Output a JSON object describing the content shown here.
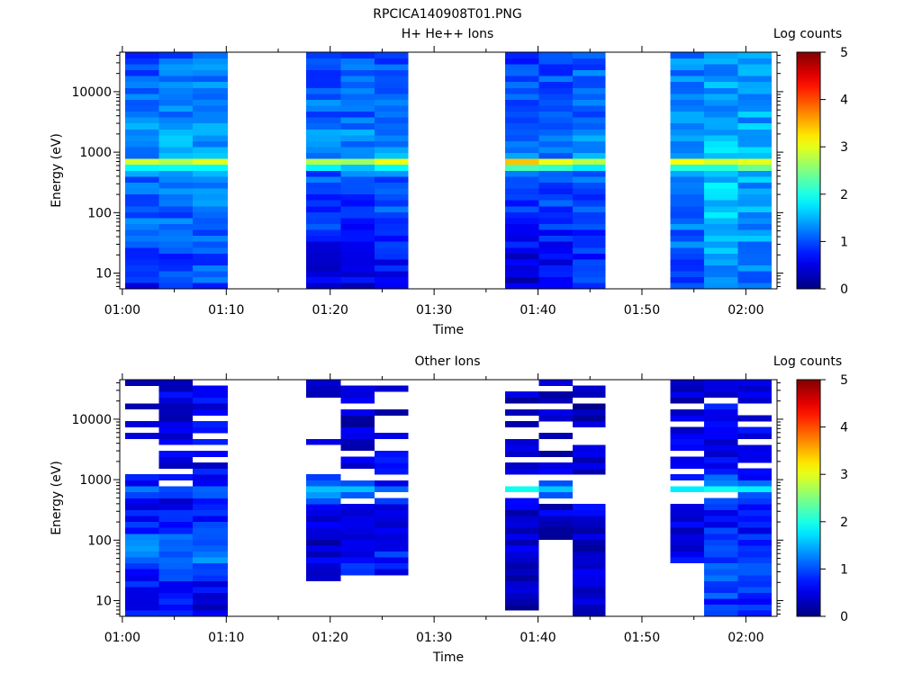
{
  "figure_title": "RPCICA140908T01.PNG",
  "chart_data": [
    {
      "type": "heatmap",
      "title": "H+ He++ Ions",
      "xlabel": "Time",
      "ylabel": "Energy (eV)",
      "colorbar_label": "Log counts",
      "colorbar_ticks": [
        "0",
        "1",
        "2",
        "3",
        "4",
        "5"
      ],
      "colorbar_range": [
        0,
        5
      ],
      "x_ticks": [
        "01:00",
        "01:10",
        "01:20",
        "01:30",
        "01:40",
        "01:50",
        "02:00"
      ],
      "x_range": [
        "00:59:45",
        "02:03:00"
      ],
      "y_scale": "log",
      "y_range": [
        5.5,
        45000
      ],
      "y_ticks": [
        "10",
        "100",
        "1000",
        "10000"
      ],
      "grid": false,
      "colormap": "jet",
      "missing_value_color": "#ffffff",
      "peak_energy_eV": 650,
      "columns": [
        {
          "start": "01:00:15",
          "end": "01:03:30",
          "base": [
            0.7,
            0.85,
            0.95,
            1.05,
            1.15,
            1.05,
            1.1,
            1.2,
            1.25,
            1.35,
            1.3,
            1.2,
            1.1,
            1.05,
            1.1,
            1.0
          ]
        },
        {
          "start": "01:03:30",
          "end": "01:06:45",
          "base": [
            0.95,
            0.9,
            0.95,
            1.0,
            1.1,
            1.15,
            1.1,
            1.2,
            1.3,
            1.4,
            1.35,
            1.25,
            1.15,
            1.1,
            1.15,
            1.05
          ]
        },
        {
          "start": "01:06:45",
          "end": "01:10:10",
          "base": [
            1.0,
            1.0,
            1.05,
            1.1,
            1.15,
            1.2,
            1.25,
            1.3,
            1.35,
            1.45,
            1.4,
            1.3,
            1.25,
            1.2,
            1.25,
            1.15
          ]
        },
        {
          "start": "01:17:40",
          "end": "01:21:00",
          "base": [
            0.45,
            0.5,
            0.6,
            0.7,
            0.85,
            0.9,
            1.0,
            1.05,
            1.15,
            1.25,
            1.2,
            1.15,
            1.1,
            1.0,
            1.05,
            0.95
          ]
        },
        {
          "start": "01:21:00",
          "end": "01:24:15",
          "base": [
            0.5,
            0.55,
            0.65,
            0.75,
            0.8,
            0.85,
            0.95,
            1.05,
            1.15,
            1.3,
            1.25,
            1.15,
            1.1,
            1.05,
            1.1,
            1.0
          ]
        },
        {
          "start": "01:24:15",
          "end": "01:27:30",
          "base": [
            0.7,
            0.65,
            0.6,
            0.75,
            0.9,
            1.0,
            1.0,
            1.1,
            1.5,
            1.35,
            1.25,
            1.2,
            1.1,
            1.0,
            1.05,
            1.0
          ]
        },
        {
          "start": "01:36:50",
          "end": "01:40:05",
          "base": [
            0.35,
            0.4,
            0.5,
            0.6,
            0.75,
            0.85,
            0.95,
            1.05,
            1.5,
            1.25,
            1.2,
            1.1,
            1.0,
            0.95,
            1.0,
            0.9
          ]
        },
        {
          "start": "01:40:05",
          "end": "01:43:20",
          "base": [
            0.7,
            0.75,
            0.6,
            0.65,
            0.8,
            0.9,
            1.0,
            1.1,
            1.25,
            1.3,
            1.2,
            1.1,
            1.05,
            1.0,
            1.05,
            0.95
          ]
        },
        {
          "start": "01:43:20",
          "end": "01:46:30",
          "base": [
            0.9,
            0.85,
            0.8,
            0.85,
            0.9,
            1.0,
            1.05,
            1.15,
            1.3,
            1.35,
            1.25,
            1.15,
            1.1,
            1.05,
            1.1,
            1.0
          ]
        },
        {
          "start": "01:52:45",
          "end": "01:56:00",
          "base": [
            1.0,
            1.05,
            1.05,
            1.1,
            1.2,
            1.25,
            1.3,
            1.35,
            1.45,
            1.4,
            1.35,
            1.3,
            1.25,
            1.2,
            1.25,
            1.15
          ]
        },
        {
          "start": "01:56:00",
          "end": "01:59:15",
          "base": [
            1.3,
            1.4,
            1.45,
            1.5,
            1.55,
            1.6,
            1.6,
            1.6,
            1.5,
            1.55,
            1.5,
            1.45,
            1.4,
            1.35,
            1.4,
            1.3
          ]
        },
        {
          "start": "01:59:15",
          "end": "02:02:30",
          "base": [
            1.1,
            1.2,
            1.3,
            1.35,
            1.4,
            1.45,
            1.4,
            1.45,
            1.5,
            1.55,
            1.45,
            1.4,
            1.35,
            1.3,
            1.35,
            1.25
          ]
        }
      ]
    },
    {
      "type": "heatmap",
      "title": "Other Ions",
      "xlabel": "Time",
      "ylabel": "Energy (eV)",
      "colorbar_label": "Log counts",
      "colorbar_ticks": [
        "0",
        "1",
        "2",
        "3",
        "4",
        "5"
      ],
      "colorbar_range": [
        0,
        5
      ],
      "x_ticks": [
        "01:00",
        "01:10",
        "01:20",
        "01:30",
        "01:40",
        "01:50",
        "02:00"
      ],
      "x_range": [
        "00:59:45",
        "02:03:00"
      ],
      "y_scale": "log",
      "y_range": [
        5.5,
        45000
      ],
      "y_ticks": [
        "10",
        "100",
        "1000",
        "10000"
      ],
      "grid": false,
      "colormap": "jet",
      "missing_value_color": "#ffffff",
      "peak_energy_eV": 650,
      "columns": [
        {
          "start": "01:00:15",
          "end": "01:03:30",
          "base": [
            0.6,
            0.6,
            0.7,
            0.9,
            1.2,
            1.05,
            0.7,
            0.5,
            0.6,
            0.55,
            0.45,
            0.4,
            0.4,
            0.45,
            0.4,
            0.45
          ],
          "gap": 0.4
        },
        {
          "start": "01:03:30",
          "end": "01:06:45",
          "base": [
            0.65,
            0.65,
            0.7,
            1.0,
            1.25,
            1.1,
            0.75,
            0.55,
            0.75,
            0.55,
            0.5,
            0.45,
            0.45,
            0.5,
            0.5,
            0.55
          ],
          "gap": 0.15
        },
        {
          "start": "01:06:45",
          "end": "01:10:10",
          "base": [
            0.45,
            0.5,
            0.6,
            1.1,
            1.4,
            1.15,
            0.8,
            0.65,
            0.8,
            0.6,
            0.55,
            0.5,
            0.5,
            0.55,
            0.55,
            0.6
          ],
          "gap": 0.2
        },
        {
          "start": "01:17:40",
          "end": "01:21:00",
          "base": [
            0.3,
            0.35,
            0.4,
            0.45,
            0.4,
            0.35,
            0.4,
            0.5,
            1.3,
            0.6,
            0.45,
            0.35,
            0.35,
            0.3,
            0.35,
            0.3
          ],
          "gap": 0.5,
          "blank_below": 20
        },
        {
          "start": "01:21:00",
          "end": "01:24:15",
          "base": [
            0,
            0,
            0,
            0.8,
            0.7,
            0.5,
            0.55,
            0.65,
            1.25,
            0.55,
            0.45,
            0.4,
            0.4,
            0.35,
            0.4,
            0.35
          ],
          "gap": 0.4,
          "blank_below": 25
        },
        {
          "start": "01:24:15",
          "end": "01:27:30",
          "base": [
            0,
            0,
            0,
            0.5,
            0.8,
            0.6,
            0.55,
            0.6,
            0.8,
            0.6,
            0.5,
            0.45,
            0.45,
            0.4,
            0.4,
            0.45
          ],
          "gap": 0.45,
          "blank_below": 25
        },
        {
          "start": "01:36:50",
          "end": "01:40:05",
          "base": [
            0.2,
            0.2,
            0.25,
            0.3,
            0.45,
            0.35,
            0.4,
            0.5,
            1.3,
            0.55,
            0.45,
            0.35,
            0.3,
            0.3,
            0.3,
            0.25
          ],
          "gap": 0.5,
          "blank_below": 6
        },
        {
          "start": "01:40:05",
          "end": "01:43:20",
          "base": [
            0,
            0,
            0,
            0,
            0.3,
            0.3,
            0.35,
            0.45,
            1.2,
            0.5,
            0.45,
            0.35,
            0.3,
            0.3,
            0.35,
            0.3
          ],
          "gap": 0.6,
          "blank_below": 95
        },
        {
          "start": "01:43:20",
          "end": "01:46:30",
          "base": [
            0.3,
            0.35,
            0.4,
            0.5,
            0.4,
            0.35,
            0.4,
            0.5,
            1.3,
            0.5,
            0.45,
            0.35,
            0.35,
            0.3,
            0.3,
            0.3
          ],
          "gap": 0.55,
          "blank_below": 6
        },
        {
          "start": "01:52:45",
          "end": "01:56:00",
          "base": [
            0,
            0,
            0.8,
            0.65,
            0.5,
            0.45,
            0.55,
            0.6,
            1.35,
            0.65,
            0.5,
            0.45,
            0.45,
            0.4,
            0.4,
            0.45
          ],
          "gap": 0.35,
          "blank_below": 40
        },
        {
          "start": "01:56:00",
          "end": "01:59:15",
          "base": [
            0.8,
            0.85,
            1.1,
            1.25,
            0.9,
            0.8,
            0.75,
            0.7,
            1.3,
            0.8,
            0.65,
            0.6,
            0.6,
            0.55,
            0.6,
            0.55
          ],
          "gap": 0.05
        },
        {
          "start": "01:59:15",
          "end": "02:02:30",
          "base": [
            0.75,
            0.8,
            1.0,
            1.0,
            0.85,
            0.75,
            0.7,
            0.65,
            1.25,
            0.75,
            0.6,
            0.55,
            0.55,
            0.5,
            0.55,
            0.5
          ],
          "gap": 0.1
        }
      ]
    }
  ]
}
